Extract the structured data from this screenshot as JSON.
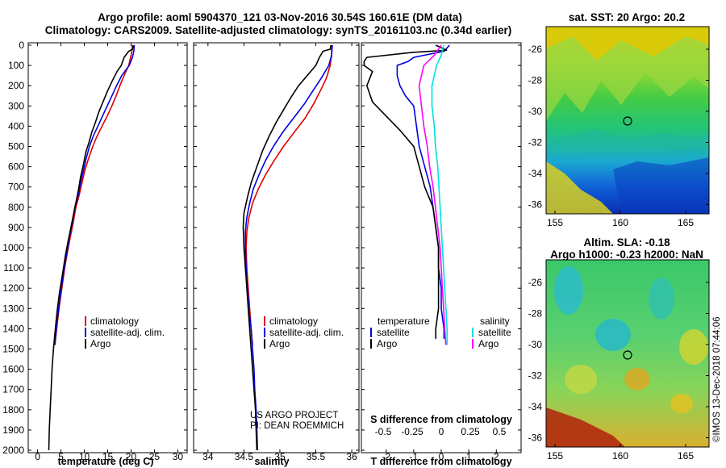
{
  "header": {
    "title_line1": "Argo profile: aoml 5904370_121 03-Nov-2016 30.54S 160.61E (DM data)",
    "title_line2": "Climatology: CARS2009. Satellite-adjusted climatology: synTS_20161103.nc (0.34d earlier)"
  },
  "colors": {
    "climatology": "#e00000",
    "satellite": "#0000e0",
    "argo": "#000000",
    "salinity_satellite": "#00e0e0",
    "salinity_argo": "#ff00ff"
  },
  "depth_ticks": [
    "0",
    "100",
    "200",
    "300",
    "400",
    "500",
    "600",
    "700",
    "800",
    "900",
    "1000",
    "1100",
    "1200",
    "1300",
    "1400",
    "1500",
    "1600",
    "1700",
    "1800",
    "1900",
    "2000"
  ],
  "temperature_panel": {
    "xlabel": "temperature (deg C)",
    "xticks": [
      "0",
      "5",
      "10",
      "15",
      "20",
      "25",
      "30"
    ],
    "legend": [
      "climatology",
      "satellite-adj. clim.",
      "Argo"
    ]
  },
  "salinity_panel": {
    "xlabel": "salinity",
    "xticks": [
      "34",
      "34.5",
      "35",
      "35.5",
      "36"
    ],
    "legend": [
      "climatology",
      "satellite-adj. clim.",
      "Argo"
    ],
    "note_line1": "US ARGO PROJECT",
    "note_line2": "PI: DEAN ROEMMICH"
  },
  "difference_panel": {
    "xlabel_bottom": "T difference from climatology",
    "xticks_bottom": [
      "-2",
      "-1",
      "0",
      "1",
      "2"
    ],
    "xlabel_top": "S difference from climatology",
    "xticks_top": [
      "-0.5",
      "-0.25",
      "0",
      "0.25",
      "0.5"
    ],
    "legend_left_title": "temperature",
    "legend_left": [
      "satellite",
      "Argo"
    ],
    "legend_right_title": "salinity",
    "legend_right": [
      "satellite",
      "Argo"
    ]
  },
  "sst_map": {
    "title": "sat. SST: 20 Argo: 20.2",
    "yticks": [
      "-26",
      "-28",
      "-30",
      "-32",
      "-34",
      "-36"
    ],
    "xticks": [
      "155",
      "160",
      "165"
    ]
  },
  "sla_map": {
    "title_line1": "Altim. SLA: -0.18",
    "title_line2": "Argo h1000: -0.23 h2000: NaN",
    "yticks": [
      "-26",
      "-28",
      "-30",
      "-32",
      "-34",
      "-36"
    ],
    "xticks": [
      "155",
      "160",
      "165"
    ]
  },
  "credit": "©IMOS 13-Dec-2018 07:44:06",
  "chart_data": [
    {
      "type": "line",
      "title": "",
      "xlabel": "temperature (deg C)",
      "ylabel": "",
      "xlim": [
        -2,
        32
      ],
      "ylim": [
        2050,
        -10
      ],
      "series": [
        {
          "name": "climatology",
          "points": [
            [
              20.3,
              0
            ],
            [
              20.2,
              30
            ],
            [
              19.9,
              60
            ],
            [
              19.5,
              100
            ],
            [
              18.5,
              150
            ],
            [
              17.6,
              200
            ],
            [
              16.8,
              250
            ],
            [
              15.9,
              300
            ],
            [
              14.9,
              350
            ],
            [
              13.8,
              400
            ],
            [
              12.7,
              450
            ],
            [
              11.8,
              500
            ],
            [
              10.9,
              560
            ],
            [
              10.1,
              620
            ],
            [
              9.5,
              680
            ],
            [
              8.9,
              740
            ],
            [
              8.2,
              800
            ],
            [
              7.6,
              880
            ],
            [
              7.0,
              950
            ],
            [
              6.4,
              1020
            ],
            [
              5.8,
              1100
            ],
            [
              5.2,
              1200
            ],
            [
              4.6,
              1300
            ],
            [
              4.1,
              1400
            ],
            [
              3.7,
              1480
            ]
          ]
        },
        {
          "name": "satellite-adj. clim.",
          "points": [
            [
              20.7,
              0
            ],
            [
              20.6,
              30
            ],
            [
              20.3,
              60
            ],
            [
              19.6,
              100
            ],
            [
              18.0,
              150
            ],
            [
              16.9,
              200
            ],
            [
              15.9,
              250
            ],
            [
              14.9,
              300
            ],
            [
              13.9,
              350
            ],
            [
              12.9,
              400
            ],
            [
              11.9,
              450
            ],
            [
              11.1,
              500
            ],
            [
              10.4,
              560
            ],
            [
              9.8,
              620
            ],
            [
              9.2,
              680
            ],
            [
              8.7,
              740
            ],
            [
              8.0,
              800
            ],
            [
              7.4,
              880
            ],
            [
              6.8,
              950
            ],
            [
              6.3,
              1020
            ],
            [
              5.7,
              1100
            ],
            [
              5.1,
              1200
            ],
            [
              4.5,
              1300
            ],
            [
              4.0,
              1400
            ],
            [
              3.7,
              1480
            ]
          ]
        },
        {
          "name": "Argo",
          "points": [
            [
              20.5,
              0
            ],
            [
              20.3,
              20
            ],
            [
              19.5,
              30
            ],
            [
              18.5,
              60
            ],
            [
              17.9,
              100
            ],
            [
              17.0,
              130
            ],
            [
              15.9,
              180
            ],
            [
              14.9,
              230
            ],
            [
              14.0,
              280
            ],
            [
              13.1,
              330
            ],
            [
              12.4,
              380
            ],
            [
              11.6,
              430
            ],
            [
              11.0,
              480
            ],
            [
              10.3,
              530
            ],
            [
              9.8,
              590
            ],
            [
              9.2,
              650
            ],
            [
              8.7,
              720
            ],
            [
              8.0,
              800
            ],
            [
              7.3,
              880
            ],
            [
              6.6,
              960
            ],
            [
              6.0,
              1030
            ],
            [
              5.4,
              1120
            ],
            [
              4.7,
              1220
            ],
            [
              4.2,
              1310
            ],
            [
              3.8,
              1400
            ],
            [
              3.4,
              1500
            ],
            [
              3.1,
              1600
            ],
            [
              2.9,
              1700
            ],
            [
              2.7,
              1800
            ],
            [
              2.5,
              1900
            ],
            [
              2.4,
              2000
            ]
          ]
        }
      ]
    },
    {
      "type": "line",
      "title": "",
      "xlabel": "salinity",
      "ylabel": "",
      "xlim": [
        33.8,
        36.1
      ],
      "ylim": [
        2050,
        -10
      ],
      "series": [
        {
          "name": "climatology",
          "points": [
            [
              35.72,
              0
            ],
            [
              35.72,
              50
            ],
            [
              35.7,
              100
            ],
            [
              35.65,
              160
            ],
            [
              35.57,
              220
            ],
            [
              35.47,
              290
            ],
            [
              35.35,
              360
            ],
            [
              35.2,
              430
            ],
            [
              35.05,
              500
            ],
            [
              34.92,
              570
            ],
            [
              34.8,
              640
            ],
            [
              34.7,
              710
            ],
            [
              34.62,
              780
            ],
            [
              34.57,
              850
            ],
            [
              34.54,
              920
            ],
            [
              34.53,
              1000
            ],
            [
              34.54,
              1100
            ],
            [
              34.56,
              1200
            ],
            [
              34.58,
              1300
            ],
            [
              34.6,
              1400
            ],
            [
              34.62,
              1480
            ]
          ]
        },
        {
          "name": "satellite-adj. clim.",
          "points": [
            [
              35.73,
              0
            ],
            [
              35.72,
              50
            ],
            [
              35.68,
              100
            ],
            [
              35.58,
              160
            ],
            [
              35.47,
              220
            ],
            [
              35.34,
              290
            ],
            [
              35.19,
              360
            ],
            [
              35.04,
              430
            ],
            [
              34.91,
              500
            ],
            [
              34.8,
              570
            ],
            [
              34.71,
              640
            ],
            [
              34.63,
              710
            ],
            [
              34.58,
              780
            ],
            [
              34.54,
              850
            ],
            [
              34.52,
              920
            ],
            [
              34.52,
              1000
            ],
            [
              34.53,
              1100
            ],
            [
              34.55,
              1200
            ],
            [
              34.57,
              1300
            ],
            [
              34.6,
              1400
            ],
            [
              34.62,
              1500
            ],
            [
              34.64,
              1600
            ],
            [
              34.65,
              1700
            ],
            [
              34.67,
              1800
            ],
            [
              34.68,
              1900
            ],
            [
              34.69,
              2000
            ]
          ]
        },
        {
          "name": "Argo",
          "points": [
            [
              35.71,
              0
            ],
            [
              35.7,
              20
            ],
            [
              35.6,
              30
            ],
            [
              35.55,
              60
            ],
            [
              35.5,
              100
            ],
            [
              35.38,
              150
            ],
            [
              35.26,
              200
            ],
            [
              35.15,
              260
            ],
            [
              35.05,
              320
            ],
            [
              34.95,
              380
            ],
            [
              34.85,
              450
            ],
            [
              34.76,
              520
            ],
            [
              34.68,
              600
            ],
            [
              34.6,
              680
            ],
            [
              34.55,
              750
            ],
            [
              34.5,
              830
            ],
            [
              34.49,
              900
            ],
            [
              34.5,
              1000
            ],
            [
              34.52,
              1100
            ],
            [
              34.54,
              1200
            ],
            [
              34.56,
              1300
            ],
            [
              34.58,
              1400
            ],
            [
              34.6,
              1500
            ],
            [
              34.62,
              1600
            ],
            [
              34.64,
              1700
            ],
            [
              34.66,
              1800
            ],
            [
              34.67,
              1900
            ],
            [
              34.68,
              2000
            ]
          ]
        }
      ]
    },
    {
      "type": "line",
      "title": "",
      "xlabel": "T difference from climatology",
      "ylabel": "",
      "xlim": [
        -2.9,
        2.9
      ],
      "ylim": [
        2050,
        -10
      ],
      "series": [
        {
          "name": "temperature satellite",
          "points": [
            [
              0.3,
              0
            ],
            [
              0.1,
              30
            ],
            [
              -1.0,
              60
            ],
            [
              -1.2,
              80
            ],
            [
              -1.6,
              100
            ],
            [
              -1.6,
              150
            ],
            [
              -1.5,
              200
            ],
            [
              -1.3,
              250
            ],
            [
              -1.0,
              300
            ],
            [
              -0.9,
              400
            ],
            [
              -0.8,
              500
            ],
            [
              -0.6,
              600
            ],
            [
              -0.4,
              700
            ],
            [
              -0.3,
              800
            ],
            [
              -0.2,
              900
            ],
            [
              -0.1,
              1000
            ],
            [
              -0.1,
              1100
            ],
            [
              0.0,
              1200
            ],
            [
              0.0,
              1300
            ],
            [
              0.1,
              1400
            ],
            [
              0.1,
              1450
            ]
          ]
        },
        {
          "name": "temperature Argo",
          "points": [
            [
              -0.2,
              0
            ],
            [
              0.2,
              25
            ],
            [
              -1.0,
              35
            ],
            [
              -2.7,
              60
            ],
            [
              -2.8,
              80
            ],
            [
              -2.8,
              100
            ],
            [
              -2.5,
              130
            ],
            [
              -2.7,
              200
            ],
            [
              -2.5,
              280
            ],
            [
              -2.0,
              350
            ],
            [
              -1.5,
              420
            ],
            [
              -1.0,
              500
            ],
            [
              -0.8,
              600
            ],
            [
              -0.6,
              700
            ],
            [
              -0.3,
              800
            ],
            [
              -0.2,
              900
            ],
            [
              -0.1,
              1000
            ],
            [
              -0.1,
              1100
            ],
            [
              -0.1,
              1200
            ],
            [
              -0.1,
              1300
            ],
            [
              -0.2,
              1400
            ],
            [
              -0.2,
              1450
            ]
          ]
        },
        {
          "name": "salinity satellite",
          "points": [
            [
              0.02,
              0
            ],
            [
              0.0,
              50
            ],
            [
              -0.04,
              100
            ],
            [
              -0.08,
              200
            ],
            [
              -0.08,
              300
            ],
            [
              -0.06,
              400
            ],
            [
              -0.05,
              500
            ],
            [
              -0.03,
              600
            ],
            [
              -0.02,
              700
            ],
            [
              -0.01,
              800
            ],
            [
              0.0,
              900
            ],
            [
              0.01,
              1000
            ],
            [
              0.02,
              1100
            ],
            [
              0.03,
              1200
            ],
            [
              0.04,
              1300
            ],
            [
              0.05,
              1400
            ],
            [
              0.05,
              1480
            ]
          ]
        },
        {
          "name": "salinity Argo",
          "points": [
            [
              0.0,
              0
            ],
            [
              -0.06,
              50
            ],
            [
              -0.15,
              100
            ],
            [
              -0.19,
              200
            ],
            [
              -0.17,
              300
            ],
            [
              -0.15,
              400
            ],
            [
              -0.12,
              500
            ],
            [
              -0.1,
              600
            ],
            [
              -0.07,
              700
            ],
            [
              -0.05,
              800
            ],
            [
              -0.03,
              900
            ],
            [
              -0.01,
              1000
            ],
            [
              0.0,
              1100
            ],
            [
              0.01,
              1200
            ],
            [
              0.02,
              1300
            ],
            [
              0.03,
              1400
            ],
            [
              0.04,
              1480
            ]
          ]
        }
      ]
    }
  ]
}
